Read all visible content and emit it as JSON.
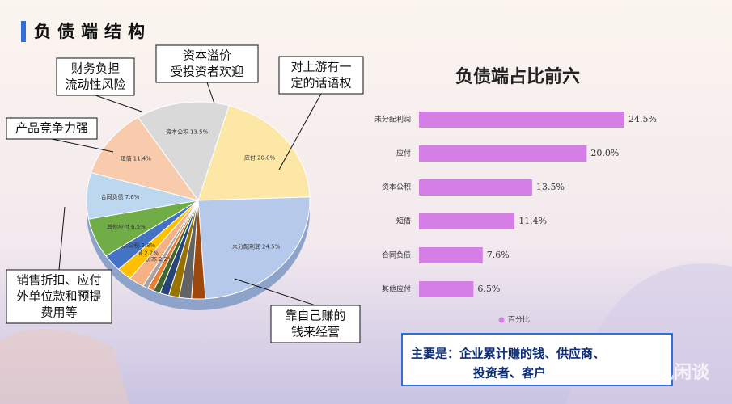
{
  "title": "负债端结构",
  "callouts": [
    {
      "lines": [
        "财务负担",
        "流动性风险"
      ]
    },
    {
      "lines": [
        "资本溢价",
        "受投资者欢迎"
      ]
    },
    {
      "lines": [
        "对上游有一",
        "定的话语权"
      ]
    },
    {
      "lines": [
        "产品竞争力强"
      ]
    },
    {
      "lines": [
        "销售折扣、应付",
        "外单位款和预提",
        "费用等"
      ]
    },
    {
      "lines": [
        "靠自己赚的",
        "钱来经营"
      ]
    }
  ],
  "note": {
    "lines": [
      "主要是：企业累计赚的钱、供应商、",
      "投资者、客户"
    ]
  },
  "watermark": "雪球：知风闲谈",
  "chart_data": [
    {
      "type": "pie",
      "categories": [
        "应付",
        "未分配利润",
        null,
        null,
        null,
        null,
        null,
        null,
        null,
        "实收资本",
        "长借",
        "盈余公积",
        "其他应付",
        "合同负债",
        "短借",
        "资本公积"
      ],
      "values": [
        20.0,
        24.5,
        2.0,
        1.8,
        1.5,
        1.3,
        1.0,
        0.9,
        0.8,
        2.2,
        2.2,
        2.8,
        6.5,
        7.6,
        11.4,
        13.5
      ],
      "value_labels": [
        "20.0%",
        "24.5%",
        null,
        null,
        null,
        null,
        null,
        null,
        null,
        "2.2%",
        "2.2%",
        "2.8%",
        "6.5%",
        "7.6%",
        "11.4%",
        "13.5%"
      ],
      "colors": [
        "#fde7a6",
        "#b7c9ea",
        "#9e480e",
        "#636363",
        "#997300",
        "#264478",
        "#43682b",
        "#ed7d31",
        "#a5a5a5",
        "#f4b183",
        "#ffc000",
        "#4472c4",
        "#70ad47",
        "#bdd7ee",
        "#f8cbad",
        "#d9d9d9"
      ]
    },
    {
      "type": "bar",
      "orientation": "horizontal",
      "title": "负债端占比前六",
      "categories": [
        "未分配利润",
        "应付",
        "资本公积",
        "短借",
        "合同负债",
        "其他应付"
      ],
      "series": [
        {
          "name": "百分比",
          "color": "#d47ee6",
          "values": [
            24.5,
            20.0,
            13.5,
            11.4,
            7.6,
            6.5
          ],
          "value_labels": [
            "24.5%",
            "20.0%",
            "13.5%",
            "11.4%",
            "7.6%",
            "6.5%"
          ]
        }
      ]
    }
  ]
}
